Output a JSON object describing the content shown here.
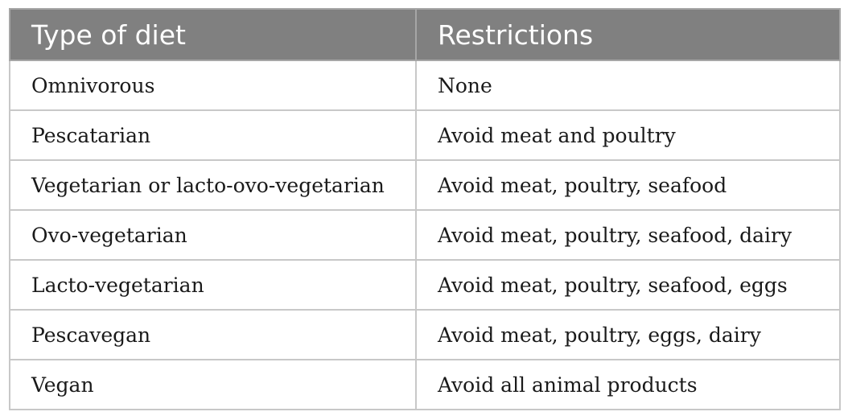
{
  "table": {
    "headers": [
      "Type of diet",
      "Restrictions"
    ],
    "rows": [
      [
        "Omnivorous",
        "None"
      ],
      [
        "Pescatarian",
        "Avoid meat and poultry"
      ],
      [
        "Vegetarian or lacto-ovo-vegetarian",
        "Avoid meat, poultry, seafood"
      ],
      [
        "Ovo-vegetarian",
        "Avoid meat, poultry, seafood, dairy"
      ],
      [
        "Lacto-vegetarian",
        "Avoid meat, poultry, seafood, eggs"
      ],
      [
        "Pescavegan",
        "Avoid meat, poultry, eggs, dairy"
      ],
      [
        "Vegan",
        "Avoid all animal products"
      ]
    ]
  },
  "colors": {
    "header_bg": "#808080",
    "header_text": "#ffffff",
    "grid": "#c8c8c8"
  }
}
